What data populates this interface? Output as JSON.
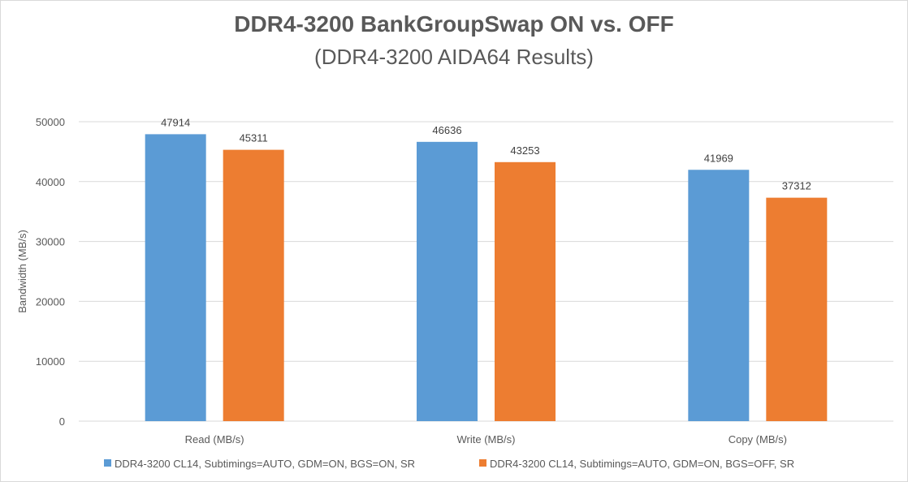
{
  "chart_data": {
    "type": "bar",
    "title": "DDR4-3200 BankGroupSwap ON vs. OFF",
    "subtitle": "(DDR4-3200 AIDA64 Results)",
    "ylabel": "Bandwidth (MB/s)",
    "xlabel": "",
    "categories": [
      "Read (MB/s)",
      "Write (MB/s)",
      "Copy (MB/s)"
    ],
    "ylim": [
      0,
      50000
    ],
    "yticks": [
      0,
      10000,
      20000,
      30000,
      40000,
      50000
    ],
    "grid": true,
    "legend_position": "bottom",
    "series": [
      {
        "name": "DDR4-3200 CL14, Subtimings=AUTO, GDM=ON, BGS=ON, SR",
        "color": "#5b9bd5",
        "values": [
          47914,
          46636,
          41969
        ]
      },
      {
        "name": "DDR4-3200 CL14, Subtimings=AUTO, GDM=ON, BGS=OFF, SR",
        "color": "#ed7d31",
        "values": [
          45311,
          43253,
          37312
        ]
      }
    ]
  }
}
